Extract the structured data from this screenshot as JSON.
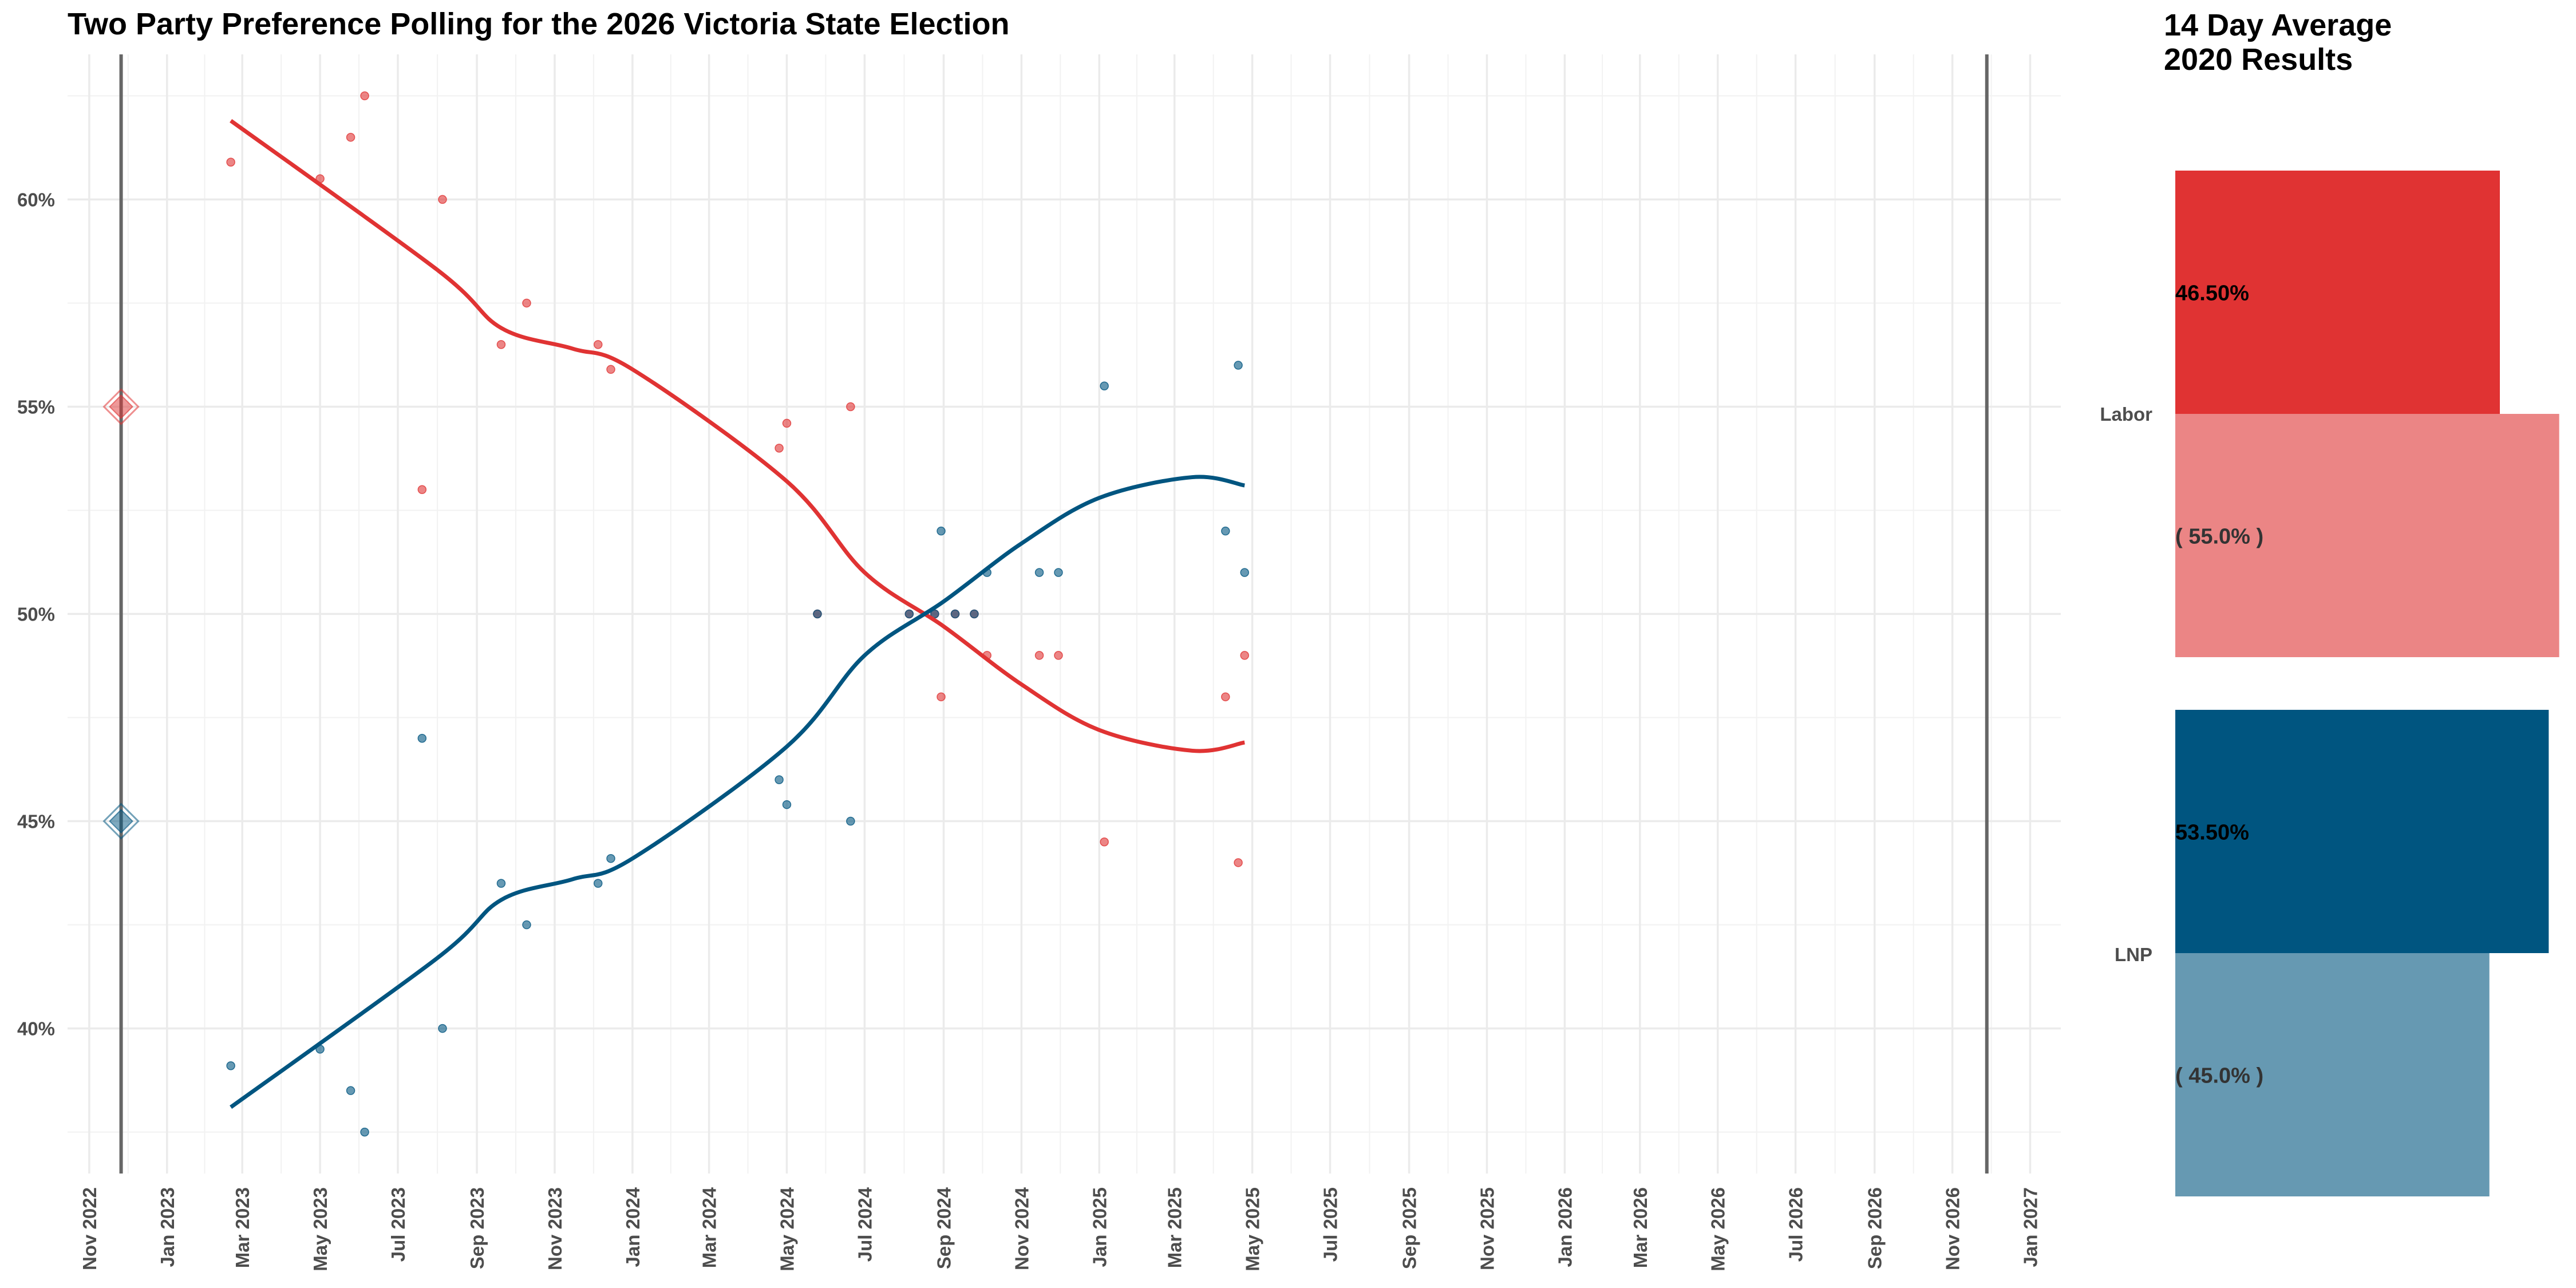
{
  "chart_data": [
    {
      "type": "scatter",
      "title": "Two Party Preference Polling for the 2026 Victoria State Election",
      "xlabel": "",
      "ylabel": "",
      "x_ticks": [
        "Nov 2022",
        "Jan 2023",
        "Mar 2023",
        "May 2023",
        "Jul 2023",
        "Sep 2023",
        "Nov 2023",
        "Jan 2024",
        "Mar 2024",
        "May 2024",
        "Jul 2024",
        "Sep 2024",
        "Nov 2024",
        "Jan 2025",
        "Mar 2025",
        "May 2025",
        "Jul 2025",
        "Sep 2025",
        "Nov 2025",
        "Jan 2026",
        "Mar 2026",
        "May 2026",
        "Jul 2026",
        "Sep 2026",
        "Nov 2026",
        "Jan 2027"
      ],
      "y_ticks": [
        "40%",
        "45%",
        "50%",
        "55%",
        "60%"
      ],
      "xlim": [
        "2022-10-15",
        "2027-01-25"
      ],
      "ylim": [
        36.5,
        63.5
      ],
      "grid": true,
      "vertical_lines": [
        "2022-11-26",
        "2026-11-28"
      ],
      "election_results_2022": [
        {
          "party": "Labor",
          "x": "2022-11-26",
          "y": 55.0,
          "color": "#e03333"
        },
        {
          "party": "LNP",
          "x": "2022-11-26",
          "y": 45.0,
          "color": "#005580"
        }
      ],
      "series": [
        {
          "name": "Labor",
          "color": "#e03333",
          "points": [
            {
              "x": "2023-02-20",
              "y": 60.9
            },
            {
              "x": "2023-05-01",
              "y": 60.5
            },
            {
              "x": "2023-05-25",
              "y": 61.5
            },
            {
              "x": "2023-06-05",
              "y": 62.5
            },
            {
              "x": "2023-07-20",
              "y": 53.0
            },
            {
              "x": "2023-08-05",
              "y": 60.0
            },
            {
              "x": "2023-09-20",
              "y": 56.5
            },
            {
              "x": "2023-10-10",
              "y": 57.5
            },
            {
              "x": "2023-12-05",
              "y": 56.5
            },
            {
              "x": "2023-12-15",
              "y": 55.9
            },
            {
              "x": "2024-04-25",
              "y": 54.0
            },
            {
              "x": "2024-05-01",
              "y": 54.6
            },
            {
              "x": "2024-05-25",
              "y": 50.0
            },
            {
              "x": "2024-06-20",
              "y": 55.0
            },
            {
              "x": "2024-08-05",
              "y": 50.0
            },
            {
              "x": "2024-08-25",
              "y": 50.0
            },
            {
              "x": "2024-08-30",
              "y": 48.0
            },
            {
              "x": "2024-09-10",
              "y": 50.0
            },
            {
              "x": "2024-09-25",
              "y": 50.0
            },
            {
              "x": "2024-10-05",
              "y": 49.0
            },
            {
              "x": "2024-11-15",
              "y": 49.0
            },
            {
              "x": "2024-11-30",
              "y": 49.0
            },
            {
              "x": "2025-01-05",
              "y": 44.5
            },
            {
              "x": "2025-04-10",
              "y": 48.0
            },
            {
              "x": "2025-04-20",
              "y": 44.0
            },
            {
              "x": "2025-04-25",
              "y": 49.0
            }
          ],
          "trend": [
            {
              "x": "2023-02-20",
              "y": 61.9
            },
            {
              "x": "2023-08-01",
              "y": 58.3
            },
            {
              "x": "2023-09-20",
              "y": 56.9
            },
            {
              "x": "2023-11-15",
              "y": 56.4
            },
            {
              "x": "2024-01-01",
              "y": 55.9
            },
            {
              "x": "2024-05-01",
              "y": 53.2
            },
            {
              "x": "2024-07-01",
              "y": 51.0
            },
            {
              "x": "2024-09-01",
              "y": 49.7
            },
            {
              "x": "2024-11-01",
              "y": 48.3
            },
            {
              "x": "2025-01-01",
              "y": 47.2
            },
            {
              "x": "2025-03-15",
              "y": 46.7
            },
            {
              "x": "2025-04-25",
              "y": 46.9
            }
          ]
        },
        {
          "name": "LNP",
          "color": "#005580",
          "points": [
            {
              "x": "2023-02-20",
              "y": 39.1
            },
            {
              "x": "2023-05-01",
              "y": 39.5
            },
            {
              "x": "2023-05-25",
              "y": 38.5
            },
            {
              "x": "2023-06-05",
              "y": 37.5
            },
            {
              "x": "2023-07-20",
              "y": 47.0
            },
            {
              "x": "2023-08-05",
              "y": 40.0
            },
            {
              "x": "2023-09-20",
              "y": 43.5
            },
            {
              "x": "2023-10-10",
              "y": 42.5
            },
            {
              "x": "2023-12-05",
              "y": 43.5
            },
            {
              "x": "2023-12-15",
              "y": 44.1
            },
            {
              "x": "2024-04-25",
              "y": 46.0
            },
            {
              "x": "2024-05-01",
              "y": 45.4
            },
            {
              "x": "2024-05-25",
              "y": 50.0
            },
            {
              "x": "2024-06-20",
              "y": 45.0
            },
            {
              "x": "2024-08-05",
              "y": 50.0
            },
            {
              "x": "2024-08-25",
              "y": 50.0
            },
            {
              "x": "2024-08-30",
              "y": 52.0
            },
            {
              "x": "2024-09-10",
              "y": 50.0
            },
            {
              "x": "2024-09-25",
              "y": 50.0
            },
            {
              "x": "2024-10-05",
              "y": 51.0
            },
            {
              "x": "2024-11-15",
              "y": 51.0
            },
            {
              "x": "2024-11-30",
              "y": 51.0
            },
            {
              "x": "2025-01-05",
              "y": 55.5
            },
            {
              "x": "2025-04-10",
              "y": 52.0
            },
            {
              "x": "2025-04-20",
              "y": 56.0
            },
            {
              "x": "2025-04-25",
              "y": 51.0
            }
          ],
          "trend": [
            {
              "x": "2023-02-20",
              "y": 38.1
            },
            {
              "x": "2023-08-01",
              "y": 41.7
            },
            {
              "x": "2023-09-20",
              "y": 43.1
            },
            {
              "x": "2023-11-15",
              "y": 43.6
            },
            {
              "x": "2024-01-01",
              "y": 44.1
            },
            {
              "x": "2024-05-01",
              "y": 46.8
            },
            {
              "x": "2024-07-01",
              "y": 49.0
            },
            {
              "x": "2024-09-01",
              "y": 50.3
            },
            {
              "x": "2024-11-01",
              "y": 51.7
            },
            {
              "x": "2025-01-01",
              "y": 52.8
            },
            {
              "x": "2025-03-15",
              "y": 53.3
            },
            {
              "x": "2025-04-25",
              "y": 53.1
            }
          ]
        }
      ]
    },
    {
      "type": "bar",
      "title": "14 Day Average\n2020 Results",
      "categories": [
        "Labor",
        "LNP"
      ],
      "series": [
        {
          "name": "14 Day Average",
          "values": [
            46.5,
            53.5
          ],
          "labels": [
            "46.50%",
            "53.50%"
          ],
          "colors": [
            "#e03333",
            "#005580"
          ]
        },
        {
          "name": "2020 Results",
          "values": [
            55.0,
            45.0
          ],
          "labels": [
            "( 55.0% )",
            "( 45.0% )"
          ],
          "colors": [
            "#eb8585",
            "#6699b2"
          ]
        }
      ]
    }
  ]
}
